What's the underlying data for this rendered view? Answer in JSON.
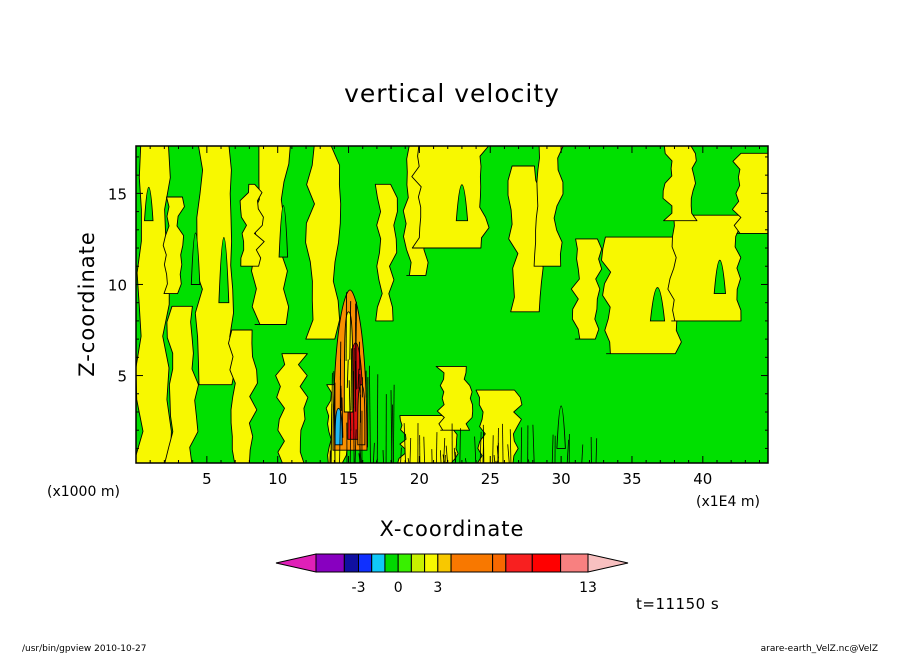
{
  "chart_data": {
    "type": "heatmap",
    "title": "vertical velocity",
    "xlabel": "X-coordinate",
    "ylabel": "Z-coordinate",
    "x_unit_label": "(x1E4 m)",
    "y_unit_label": "(x1000 m)",
    "xlim": [
      0,
      44.6
    ],
    "ylim": [
      0.2,
      17.6
    ],
    "x_ticks": [
      "5",
      "10",
      "15",
      "20",
      "25",
      "30",
      "35",
      "40"
    ],
    "y_ticks": [
      "5",
      "10",
      "15"
    ],
    "grid": false,
    "colorbar": {
      "tick_labels": [
        "-3",
        "0",
        "3",
        "13"
      ],
      "colors": [
        "#e020b8",
        "#8800c0",
        "#1010a0",
        "#1030ff",
        "#10c8f8",
        "#00d800",
        "#38f000",
        "#c8f000",
        "#f8f800",
        "#f8c800",
        "#f87800",
        "#f86800",
        "#f82020",
        "#ff0000",
        "#f88080",
        "#f8c0c0"
      ],
      "legend_colors": {
        "negative_strong": "#8800c0",
        "negative": "#10c8f8",
        "near_zero_negative": "#00e000",
        "near_zero_positive": "#f8f800",
        "positive": "#f88800",
        "positive_strong": "#f81818"
      }
    },
    "plot_colors": {
      "green": "#00e000",
      "yellow": "#f8f800",
      "orange": "#f89000",
      "red": "#e01010",
      "cyan": "#20b8f0"
    }
  },
  "annotations": {
    "time": "t=11150 s",
    "footer_left": "/usr/bin/gpview  2010-10-27",
    "footer_right": "arare-earth_VelZ.nc@VelZ"
  }
}
